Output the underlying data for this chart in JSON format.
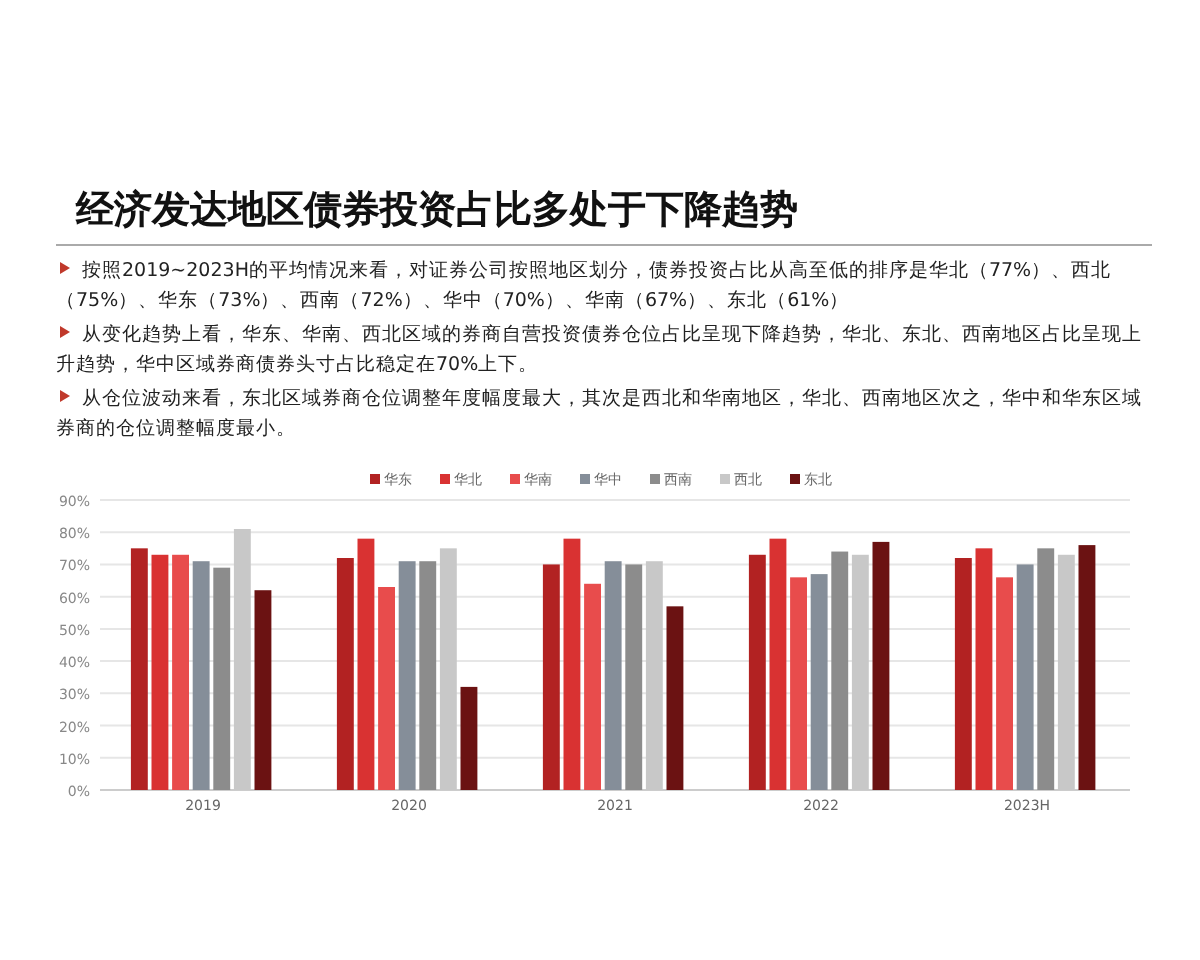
{
  "chart_data": {
    "type": "bar",
    "title": "经济发达地区债券投资占比多处于下降趋势",
    "annotations": [
      "按照2019~2023H的平均情况来看，对证券公司按照地区划分，债券投资占比从高至低的排序是华北（77%）、西北（75%）、华东（73%）、西南（72%）、华中（70%）、华南（67%）、东北（61%）",
      "从变化趋势上看，华东、华南、西北区域的券商自营投资债券仓位占比呈现下降趋势，华北、东北、西南地区占比呈现上升趋势，华中区域券商债券头寸占比稳定在70%上下。",
      "从仓位波动来看，东北区域券商仓位调整年度幅度最大，其次是西北和华南地区，华北、西南地区次之，华中和华东区域券商的仓位调整幅度最小。"
    ],
    "categories": [
      "2019",
      "2020",
      "2021",
      "2022",
      "2023H"
    ],
    "series": [
      {
        "name": "华东",
        "color": "#b22222",
        "values": [
          75,
          72,
          70,
          73,
          72
        ]
      },
      {
        "name": "华北",
        "color": "#d93232",
        "values": [
          73,
          78,
          78,
          78,
          75
        ]
      },
      {
        "name": "华南",
        "color": "#e84c4c",
        "values": [
          73,
          63,
          64,
          66,
          66
        ]
      },
      {
        "name": "华中",
        "color": "#858e99",
        "values": [
          71,
          71,
          71,
          67,
          70
        ]
      },
      {
        "name": "西南",
        "color": "#8c8c8c",
        "values": [
          69,
          71,
          70,
          74,
          75
        ]
      },
      {
        "name": "西北",
        "color": "#c8c8c8",
        "values": [
          81,
          75,
          71,
          73,
          73
        ]
      },
      {
        "name": "东北",
        "color": "#6b1212",
        "values": [
          62,
          32,
          57,
          77,
          76
        ]
      }
    ],
    "ylim": [
      0,
      90
    ],
    "yticks": [
      {
        "value": 0,
        "label": "0%"
      },
      {
        "value": 10,
        "label": "10%"
      },
      {
        "value": 20,
        "label": "20%"
      },
      {
        "value": 30,
        "label": "30%"
      },
      {
        "value": 40,
        "label": "40%"
      },
      {
        "value": 50,
        "label": "50%"
      },
      {
        "value": 60,
        "label": "60%"
      },
      {
        "value": 70,
        "label": "70%"
      },
      {
        "value": 80,
        "label": "80%"
      },
      {
        "value": 90,
        "label": "90%"
      }
    ],
    "grid": "y",
    "legend": "top"
  }
}
